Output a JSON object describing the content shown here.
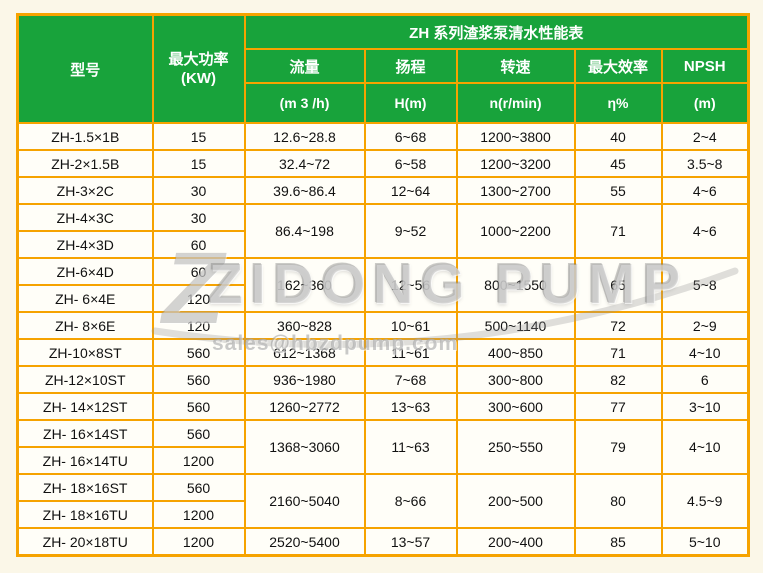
{
  "header": {
    "title": "ZH 系列渣浆泵清水性能表",
    "col_model": "型号",
    "col_power_line1": "最大功率",
    "col_power_line2": "(KW)",
    "cols": [
      {
        "name": "流量",
        "unit": "(m 3 /h)"
      },
      {
        "name": "扬程",
        "unit": "H(m)"
      },
      {
        "name": "转速",
        "unit": "n(r/min)"
      },
      {
        "name": "最大效率",
        "unit": "η%"
      },
      {
        "name": "NPSH",
        "unit": "(m)"
      }
    ]
  },
  "rows": [
    {
      "cells": [
        {
          "t": "ZH-1.5×1B"
        },
        {
          "t": "15"
        },
        {
          "t": "12.6~28.8"
        },
        {
          "t": "6~68"
        },
        {
          "t": "1200~3800"
        },
        {
          "t": "40"
        },
        {
          "t": "2~4"
        }
      ]
    },
    {
      "cells": [
        {
          "t": "ZH-2×1.5B"
        },
        {
          "t": "15"
        },
        {
          "t": "32.4~72"
        },
        {
          "t": "6~58"
        },
        {
          "t": "1200~3200"
        },
        {
          "t": "45"
        },
        {
          "t": "3.5~8"
        }
      ]
    },
    {
      "cells": [
        {
          "t": "ZH-3×2C"
        },
        {
          "t": "30"
        },
        {
          "t": "39.6~86.4"
        },
        {
          "t": "12~64"
        },
        {
          "t": "1300~2700"
        },
        {
          "t": "55"
        },
        {
          "t": "4~6"
        }
      ]
    },
    {
      "cells": [
        {
          "t": "ZH-4×3C"
        },
        {
          "t": "30"
        },
        {
          "t": "86.4~198",
          "rs": 2
        },
        {
          "t": "9~52",
          "rs": 2
        },
        {
          "t": "1000~2200",
          "rs": 2
        },
        {
          "t": "71",
          "rs": 2
        },
        {
          "t": "4~6",
          "rs": 2
        }
      ]
    },
    {
      "cells": [
        {
          "t": "ZH-4×3D"
        },
        {
          "t": "60"
        }
      ]
    },
    {
      "cells": [
        {
          "t": "ZH-6×4D"
        },
        {
          "t": "60"
        },
        {
          "t": "162~360",
          "rs": 2
        },
        {
          "t": "12~56",
          "rs": 2
        },
        {
          "t": "800~1550",
          "rs": 2
        },
        {
          "t": "65",
          "rs": 2
        },
        {
          "t": "5~8",
          "rs": 2
        }
      ]
    },
    {
      "cells": [
        {
          "t": "ZH- 6×4E"
        },
        {
          "t": "120"
        }
      ]
    },
    {
      "cells": [
        {
          "t": "ZH- 8×6E"
        },
        {
          "t": "120"
        },
        {
          "t": "360~828"
        },
        {
          "t": "10~61"
        },
        {
          "t": "500~1140"
        },
        {
          "t": "72"
        },
        {
          "t": "2~9"
        }
      ]
    },
    {
      "cells": [
        {
          "t": "ZH-10×8ST"
        },
        {
          "t": "560"
        },
        {
          "t": "612~1368"
        },
        {
          "t": "11~61"
        },
        {
          "t": "400~850"
        },
        {
          "t": "71"
        },
        {
          "t": "4~10"
        }
      ]
    },
    {
      "cells": [
        {
          "t": "ZH-12×10ST"
        },
        {
          "t": "560"
        },
        {
          "t": "936~1980"
        },
        {
          "t": "7~68"
        },
        {
          "t": "300~800"
        },
        {
          "t": "82"
        },
        {
          "t": "6"
        }
      ]
    },
    {
      "cells": [
        {
          "t": "ZH- 14×12ST"
        },
        {
          "t": "560"
        },
        {
          "t": "1260~2772"
        },
        {
          "t": "13~63"
        },
        {
          "t": "300~600"
        },
        {
          "t": "77"
        },
        {
          "t": "3~10"
        }
      ]
    },
    {
      "cells": [
        {
          "t": "ZH- 16×14ST"
        },
        {
          "t": "560"
        },
        {
          "t": "1368~3060",
          "rs": 2
        },
        {
          "t": "11~63",
          "rs": 2
        },
        {
          "t": "250~550",
          "rs": 2
        },
        {
          "t": "79",
          "rs": 2
        },
        {
          "t": "4~10",
          "rs": 2
        }
      ]
    },
    {
      "cells": [
        {
          "t": "ZH- 16×14TU"
        },
        {
          "t": "1200"
        }
      ]
    },
    {
      "cells": [
        {
          "t": "ZH- 18×16ST"
        },
        {
          "t": "560"
        },
        {
          "t": "2160~5040",
          "rs": 2
        },
        {
          "t": "8~66",
          "rs": 2
        },
        {
          "t": "200~500",
          "rs": 2
        },
        {
          "t": "80",
          "rs": 2
        },
        {
          "t": "4.5~9",
          "rs": 2
        }
      ]
    },
    {
      "cells": [
        {
          "t": "ZH- 18×16TU"
        },
        {
          "t": "1200"
        }
      ]
    },
    {
      "cells": [
        {
          "t": "ZH- 20×18TU"
        },
        {
          "t": "1200"
        },
        {
          "t": "2520~5400"
        },
        {
          "t": "13~57"
        },
        {
          "t": "200~400"
        },
        {
          "t": "85"
        },
        {
          "t": "5~10"
        }
      ]
    }
  ],
  "watermark": {
    "logo_letter": "Z",
    "brand": "ZIDONG PUMP",
    "email": "sales@hbzdpump.com"
  },
  "colors": {
    "header_green": "#18a33b",
    "border_orange": "#f6a300",
    "page_bg": "#fbf7e8",
    "cell_bg": "#fffef8",
    "text": "#111111",
    "watermark_gray": "#9a9a9a"
  }
}
